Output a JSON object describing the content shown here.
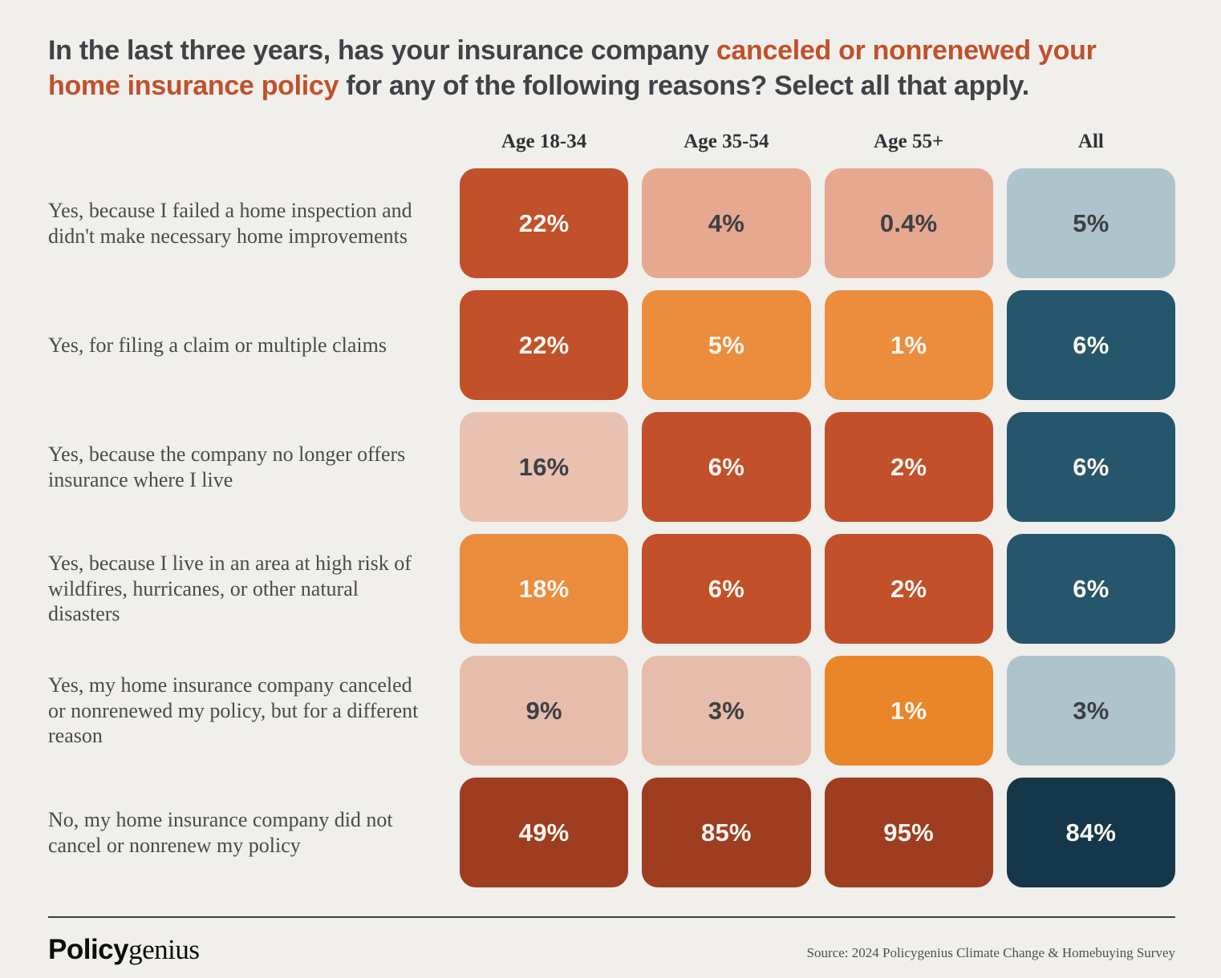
{
  "title": {
    "part1": "In the last three years, has your insurance company ",
    "accent": "canceled or nonrenewed your home insurance policy",
    "part2": " for any of the following reasons? Select all that apply.",
    "accent_color": "#c0512b",
    "text_color": "#3f4347"
  },
  "columns": [
    "Age 18-34",
    "Age 35-54",
    "Age 55+",
    "All"
  ],
  "palette": {
    "background": "#f0efec",
    "dark_orange": "#c2502a",
    "orange": "#ec8c3d",
    "bright_orange": "#e98629",
    "salmon": "#e6a88f",
    "light_pink": "#e8c1b0",
    "pink": "#e6bcaa",
    "light_blue": "#aec4cd",
    "teal": "#25566b",
    "brick": "#9e3d20",
    "navy": "#15374a",
    "light_text": "#faf6f0",
    "dark_text": "#3d4044"
  },
  "rows": [
    {
      "label": "Yes, because I failed a home inspection and didn't make necessary home improvements",
      "cells": [
        {
          "value": "22%",
          "style": "background:#c2502a;color:#faf6f0"
        },
        {
          "value": "4%",
          "style": "background:#e6a88f;color:#3d4044"
        },
        {
          "value": "0.4%",
          "style": "background:#e6a88f;color:#3d4044"
        },
        {
          "value": "5%",
          "style": "background:#aec4cd;color:#3d4044"
        }
      ]
    },
    {
      "label": "Yes, for filing a claim or multiple claims",
      "cells": [
        {
          "value": "22%",
          "style": "background:#c2502a;color:#faf6f0"
        },
        {
          "value": "5%",
          "style": "background:#ec8c3d;color:#faf6f0"
        },
        {
          "value": "1%",
          "style": "background:#ec8c3d;color:#faf6f0"
        },
        {
          "value": "6%",
          "style": "background:#25566b;color:#faf6f0"
        }
      ]
    },
    {
      "label": "Yes, because the company no longer offers insurance where I live",
      "cells": [
        {
          "value": "16%",
          "style": "background:#e8c1b0;color:#3d4044"
        },
        {
          "value": "6%",
          "style": "background:#c2502a;color:#faf6f0"
        },
        {
          "value": "2%",
          "style": "background:#c2502a;color:#faf6f0"
        },
        {
          "value": "6%",
          "style": "background:#25566b;color:#faf6f0"
        }
      ]
    },
    {
      "label": "Yes, because I live in an area at high risk of wildfires, hurricanes, or other natural disasters",
      "cells": [
        {
          "value": "18%",
          "style": "background:#ec8c3d;color:#faf6f0"
        },
        {
          "value": "6%",
          "style": "background:#c2502a;color:#faf6f0"
        },
        {
          "value": "2%",
          "style": "background:#c2502a;color:#faf6f0"
        },
        {
          "value": "6%",
          "style": "background:#25566b;color:#faf6f0"
        }
      ]
    },
    {
      "label": "Yes, my home insurance company canceled or nonrenewed my policy, but for a different reason",
      "cells": [
        {
          "value": "9%",
          "style": "background:#e6bcaa;color:#3d4044"
        },
        {
          "value": "3%",
          "style": "background:#e6bcaa;color:#3d4044"
        },
        {
          "value": "1%",
          "style": "background:#e98629;color:#faf6f0"
        },
        {
          "value": "3%",
          "style": "background:#aec4cd;color:#3d4044"
        }
      ]
    },
    {
      "label": "No, my home insurance company did not cancel or nonrenew my policy",
      "cells": [
        {
          "value": "49%",
          "style": "background:#9e3d20;color:#faf6f0"
        },
        {
          "value": "85%",
          "style": "background:#9e3d20;color:#faf6f0"
        },
        {
          "value": "95%",
          "style": "background:#9e3d20;color:#faf6f0"
        },
        {
          "value": "84%",
          "style": "background:#15374a;color:#faf6f0"
        }
      ]
    }
  ],
  "footer": {
    "logo_bold": "Policy",
    "logo_light": "genius",
    "source": "Source: 2024 Policygenius Climate Change & Homebuying Survey"
  },
  "chart_data": {
    "type": "heatmap",
    "title": "In the last three years, has your insurance company canceled or nonrenewed your home insurance policy for any of the following reasons? Select all that apply.",
    "categories": [
      "Age 18-34",
      "Age 35-54",
      "Age 55+",
      "All"
    ],
    "unit": "percent",
    "legend_position": "none",
    "grid": false,
    "rows": [
      {
        "label": "Yes, because I failed a home inspection and didn't make necessary home improvements",
        "values": [
          22,
          4,
          0.4,
          5
        ]
      },
      {
        "label": "Yes, for filing a claim or multiple claims",
        "values": [
          22,
          5,
          1,
          6
        ]
      },
      {
        "label": "Yes, because the company no longer offers insurance where I live",
        "values": [
          16,
          6,
          2,
          6
        ]
      },
      {
        "label": "Yes, because I live in an area at high risk of wildfires, hurricanes, or other natural disasters",
        "values": [
          18,
          6,
          2,
          6
        ]
      },
      {
        "label": "Yes, my home insurance company canceled or nonrenewed my policy, but for a different reason",
        "values": [
          9,
          3,
          1,
          3
        ]
      },
      {
        "label": "No, my home insurance company did not cancel or nonrenew my policy",
        "values": [
          49,
          85,
          95,
          84
        ]
      }
    ],
    "source": "Source: 2024 Policygenius Climate Change & Homebuying Survey"
  }
}
